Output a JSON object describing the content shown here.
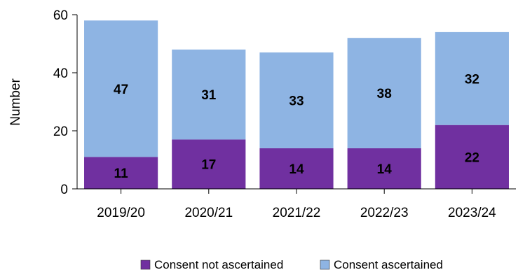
{
  "chart_data": {
    "type": "bar",
    "stacked": true,
    "categories": [
      "2019/20",
      "2020/21",
      "2021/22",
      "2022/23",
      "2023/24"
    ],
    "series": [
      {
        "name": "Consent not ascertained",
        "values": [
          11,
          17,
          14,
          14,
          22
        ],
        "color": "#7030a0"
      },
      {
        "name": "Consent ascertained",
        "values": [
          47,
          31,
          33,
          38,
          32
        ],
        "color": "#8eb4e3"
      }
    ],
    "ylabel": "Number",
    "xlabel": "",
    "ylim": [
      0,
      60
    ],
    "yticks": [
      0,
      20,
      40,
      60
    ],
    "grid": false,
    "legend_position": "bottom"
  }
}
